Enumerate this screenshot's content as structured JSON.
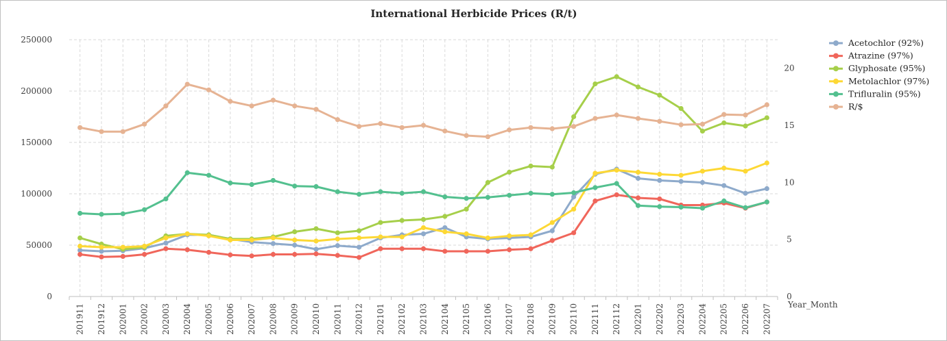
{
  "chart_data": {
    "type": "line",
    "title": "International Herbicide Prices (R/t)",
    "xlabel": "Year_Month",
    "ylabel": "",
    "ylim": [
      0,
      250000
    ],
    "y2lim": [
      0,
      22.5
    ],
    "yticks": [
      0,
      50000,
      100000,
      150000,
      200000,
      250000
    ],
    "y2ticks": [
      0,
      5,
      10,
      15,
      20
    ],
    "grid": true,
    "legend": "right",
    "categories": [
      "201911",
      "201912",
      "202001",
      "202002",
      "202003",
      "202004",
      "202005",
      "202006",
      "202007",
      "202008",
      "202009",
      "202010",
      "202011",
      "202012",
      "202101",
      "202102",
      "202103",
      "202104",
      "202105",
      "202106",
      "202107",
      "202108",
      "202109",
      "202110",
      "202111",
      "202112",
      "202201",
      "202202",
      "202203",
      "202204",
      "202205",
      "202206",
      "202207"
    ],
    "series": [
      {
        "name": "Acetochlor (92%)",
        "color": "#8eaacb",
        "axis": "left",
        "values": [
          45000,
          44000,
          44500,
          47000,
          52000,
          60000,
          60000,
          56000,
          53000,
          51500,
          50000,
          46000,
          49500,
          48000,
          57000,
          60000,
          61000,
          67000,
          58000,
          56000,
          57000,
          58000,
          64000,
          97000,
          119000,
          124000,
          115000,
          113000,
          112000,
          111000,
          108000,
          100500,
          105000
        ]
      },
      {
        "name": "Atrazine (97%)",
        "color": "#f0665b",
        "axis": "left",
        "values": [
          41000,
          38500,
          39000,
          41000,
          46500,
          45500,
          43000,
          40500,
          39500,
          41000,
          41000,
          41500,
          40000,
          38000,
          46500,
          46500,
          46500,
          44000,
          44000,
          44000,
          45500,
          46500,
          54500,
          62000,
          93000,
          99000,
          96000,
          95000,
          89000,
          89000,
          91000,
          86000,
          92000
        ]
      },
      {
        "name": "Glyphosate (95%)",
        "color": "#a6cf4a",
        "axis": "left",
        "values": [
          57000,
          51000,
          46000,
          48000,
          59000,
          61000,
          60000,
          56000,
          56000,
          58000,
          63000,
          66000,
          62000,
          64000,
          72000,
          74000,
          75000,
          78000,
          85000,
          111000,
          121000,
          127000,
          126000,
          175000,
          207000,
          214000,
          204000,
          196000,
          183000,
          161000,
          169000,
          166000,
          174000
        ]
      },
      {
        "name": "Metolachlor (97%)",
        "color": "#fdd835",
        "axis": "left",
        "values": [
          49000,
          48000,
          48000,
          49000,
          57000,
          61000,
          59000,
          55000,
          55000,
          57000,
          55000,
          54000,
          56000,
          57000,
          58000,
          58000,
          67000,
          63000,
          61000,
          57000,
          59000,
          60000,
          72000,
          85000,
          120000,
          123000,
          121000,
          119000,
          118000,
          122000,
          125000,
          122000,
          130000
        ]
      },
      {
        "name": "Trifluralin (95%)",
        "color": "#53c08f",
        "axis": "left",
        "values": [
          81000,
          80000,
          80500,
          84500,
          95000,
          120500,
          118000,
          110500,
          109000,
          113000,
          107500,
          107000,
          102000,
          99500,
          102000,
          100500,
          102000,
          97000,
          95500,
          96500,
          98500,
          100500,
          99500,
          101000,
          106000,
          110000,
          88500,
          87500,
          87000,
          86000,
          93000,
          86500,
          92000
        ]
      },
      {
        "name": "R/$",
        "color": "#e6b393",
        "axis": "right",
        "values": [
          14.8,
          14.45,
          14.45,
          15.1,
          16.7,
          18.6,
          18.1,
          17.1,
          16.7,
          17.2,
          16.7,
          16.4,
          15.5,
          14.9,
          15.15,
          14.8,
          15.0,
          14.5,
          14.1,
          14.0,
          14.6,
          14.8,
          14.7,
          14.9,
          15.6,
          15.9,
          15.6,
          15.35,
          15.05,
          15.1,
          15.95,
          15.9,
          16.8
        ]
      }
    ]
  }
}
